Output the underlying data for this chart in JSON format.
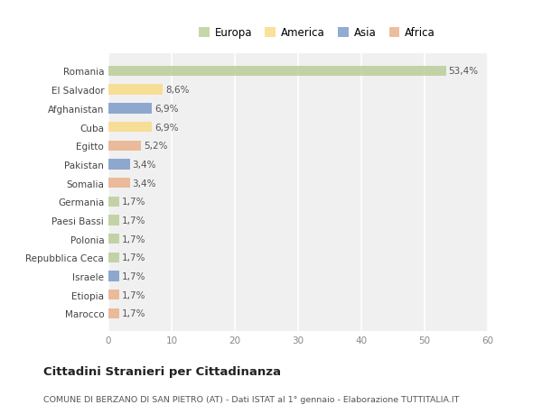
{
  "countries": [
    "Romania",
    "El Salvador",
    "Afghanistan",
    "Cuba",
    "Egitto",
    "Pakistan",
    "Somalia",
    "Germania",
    "Paesi Bassi",
    "Polonia",
    "Repubblica Ceca",
    "Israele",
    "Etiopia",
    "Marocco"
  ],
  "values": [
    53.4,
    8.6,
    6.9,
    6.9,
    5.2,
    3.4,
    3.4,
    1.7,
    1.7,
    1.7,
    1.7,
    1.7,
    1.7,
    1.7
  ],
  "labels": [
    "53,4%",
    "8,6%",
    "6,9%",
    "6,9%",
    "5,2%",
    "3,4%",
    "3,4%",
    "1,7%",
    "1,7%",
    "1,7%",
    "1,7%",
    "1,7%",
    "1,7%",
    "1,7%"
  ],
  "colors": [
    "#b5c98e",
    "#f9d87a",
    "#6e8fc4",
    "#f9d87a",
    "#e8a97e",
    "#6e8fc4",
    "#e8a97e",
    "#b5c98e",
    "#b5c98e",
    "#b5c98e",
    "#b5c98e",
    "#6e8fc4",
    "#e8a97e",
    "#e8a97e"
  ],
  "legend_labels": [
    "Europa",
    "America",
    "Asia",
    "Africa"
  ],
  "legend_colors": [
    "#b5c98e",
    "#f9d87a",
    "#6e8fc4",
    "#e8a97e"
  ],
  "xlim": [
    0,
    60
  ],
  "xticks": [
    0,
    10,
    20,
    30,
    40,
    50,
    60
  ],
  "title": "Cittadini Stranieri per Cittadinanza",
  "subtitle": "COMUNE DI BERZANO DI SAN PIETRO (AT) - Dati ISTAT al 1° gennaio - Elaborazione TUTTITALIA.IT",
  "bg_color": "#ffffff",
  "plot_bg_color": "#f0f0f0",
  "grid_color": "#ffffff",
  "bar_alpha": 0.75,
  "bar_height": 0.55
}
